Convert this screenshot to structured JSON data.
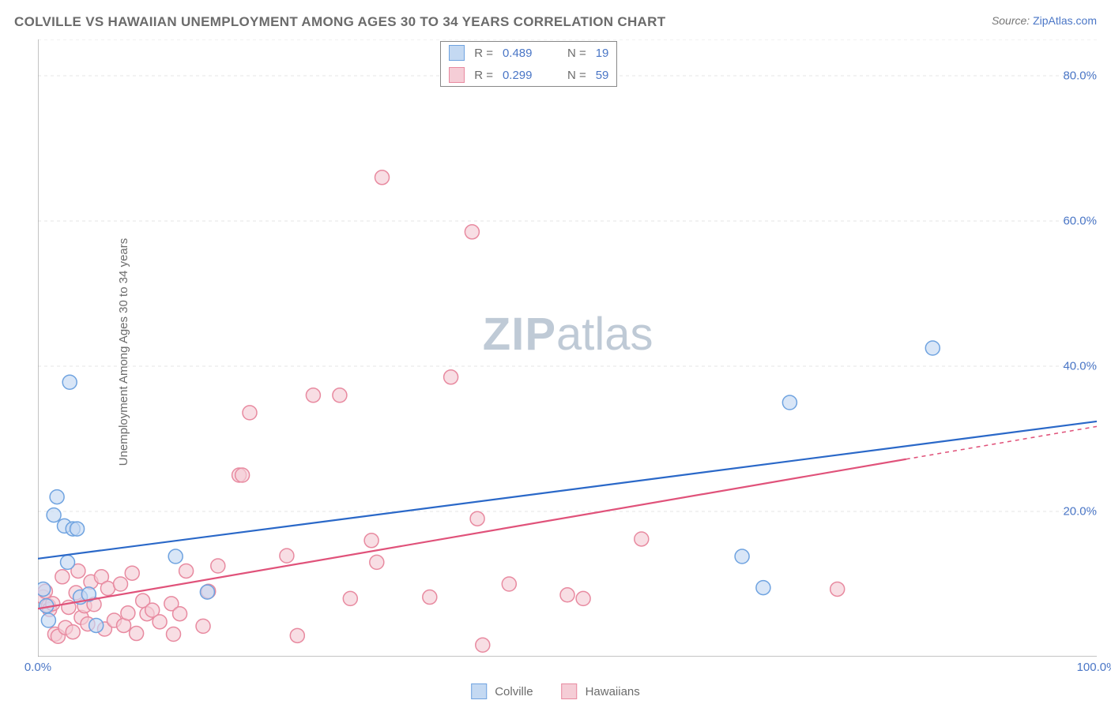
{
  "title": "COLVILLE VS HAWAIIAN UNEMPLOYMENT AMONG AGES 30 TO 34 YEARS CORRELATION CHART",
  "source_label": "Source: ",
  "source_site": "ZipAtlas.com",
  "yaxis_label": "Unemployment Among Ages 30 to 34 years",
  "watermark_zip": "ZIP",
  "watermark_atlas": "atlas",
  "chart": {
    "type": "scatter-with-trendlines",
    "xmin": 0,
    "xmax": 100,
    "ymin": 0,
    "ymax": 85,
    "x_ticks": [
      0,
      10,
      20,
      30,
      40,
      50,
      60,
      70,
      80,
      90,
      100
    ],
    "x_tick_labels": {
      "0": "0.0%",
      "100": "100.0%"
    },
    "y_ticks": [
      20,
      40,
      60,
      80
    ],
    "y_tick_labels": {
      "20": "20.0%",
      "40": "40.0%",
      "60": "60.0%",
      "80": "80.0%"
    },
    "grid_color": "#e6e6e6",
    "axis_color": "#888888",
    "tick_color": "#888888",
    "marker_radius": 9,
    "marker_stroke_width": 1.5,
    "trend_line_width": 2.2,
    "series": [
      {
        "name": "Colville",
        "fill": "#c4d9f2",
        "stroke": "#6fa3e0",
        "line_stroke": "#2a68c8",
        "r_value": "0.489",
        "n_value": "19",
        "points": [
          [
            0.5,
            9.3
          ],
          [
            0.8,
            7.0
          ],
          [
            1.0,
            5.0
          ],
          [
            1.5,
            19.5
          ],
          [
            1.8,
            22.0
          ],
          [
            2.5,
            18.0
          ],
          [
            2.8,
            13.0
          ],
          [
            3.0,
            37.8
          ],
          [
            3.3,
            17.6
          ],
          [
            3.7,
            17.6
          ],
          [
            4.0,
            8.2
          ],
          [
            4.8,
            8.6
          ],
          [
            5.5,
            4.3
          ],
          [
            13.0,
            13.8
          ],
          [
            16.0,
            8.9
          ],
          [
            66.5,
            13.8
          ],
          [
            68.5,
            9.5
          ],
          [
            71.0,
            35.0
          ],
          [
            84.5,
            42.5
          ]
        ],
        "trend": {
          "x1": 0,
          "y1": 13.5,
          "x2": 100,
          "y2": 32.4
        }
      },
      {
        "name": "Hawaiians",
        "fill": "#f5cdd6",
        "stroke": "#e88aa0",
        "line_stroke": "#e0527a",
        "r_value": "0.299",
        "n_value": "59",
        "points": [
          [
            0.5,
            8.2
          ],
          [
            0.7,
            9.0
          ],
          [
            1.0,
            7.0
          ],
          [
            1.1,
            6.5
          ],
          [
            1.4,
            7.3
          ],
          [
            1.6,
            3.1
          ],
          [
            1.9,
            2.8
          ],
          [
            2.3,
            11.0
          ],
          [
            2.6,
            4.0
          ],
          [
            2.9,
            6.8
          ],
          [
            3.3,
            3.4
          ],
          [
            3.6,
            8.8
          ],
          [
            3.8,
            11.8
          ],
          [
            4.1,
            5.4
          ],
          [
            4.4,
            7.0
          ],
          [
            4.7,
            4.5
          ],
          [
            5.0,
            10.3
          ],
          [
            5.3,
            7.2
          ],
          [
            6.0,
            11.0
          ],
          [
            6.3,
            3.8
          ],
          [
            6.6,
            9.4
          ],
          [
            7.2,
            5.0
          ],
          [
            7.8,
            10.0
          ],
          [
            8.1,
            4.3
          ],
          [
            8.5,
            6.0
          ],
          [
            8.9,
            11.5
          ],
          [
            9.3,
            3.2
          ],
          [
            9.9,
            7.7
          ],
          [
            10.3,
            5.9
          ],
          [
            10.8,
            6.4
          ],
          [
            11.5,
            4.8
          ],
          [
            12.6,
            7.3
          ],
          [
            12.8,
            3.1
          ],
          [
            13.4,
            5.9
          ],
          [
            14.0,
            11.8
          ],
          [
            15.6,
            4.2
          ],
          [
            16.1,
            9.0
          ],
          [
            17.0,
            12.5
          ],
          [
            19.0,
            25.0
          ],
          [
            19.3,
            25.0
          ],
          [
            20.0,
            33.6
          ],
          [
            23.5,
            13.9
          ],
          [
            24.5,
            2.9
          ],
          [
            26.0,
            36.0
          ],
          [
            28.5,
            36.0
          ],
          [
            29.5,
            8.0
          ],
          [
            31.5,
            16.0
          ],
          [
            32.0,
            13.0
          ],
          [
            32.5,
            66.0
          ],
          [
            37.0,
            8.2
          ],
          [
            39.0,
            38.5
          ],
          [
            41.0,
            58.5
          ],
          [
            41.5,
            19.0
          ],
          [
            42.0,
            1.6
          ],
          [
            44.5,
            10.0
          ],
          [
            50.0,
            8.5
          ],
          [
            51.5,
            8.0
          ],
          [
            57.0,
            16.2
          ],
          [
            75.5,
            9.3
          ]
        ],
        "trend": {
          "x1": 0,
          "y1": 6.6,
          "x2": 82,
          "y2": 27.2,
          "dash_extend_to": 100,
          "dash_y2": 31.7
        }
      }
    ]
  },
  "legend": {
    "top": {
      "rows": [
        "Colville",
        "Hawaiians"
      ]
    },
    "bottom": [
      "Colville",
      "Hawaiians"
    ]
  },
  "styling": {
    "title_fontsize": 17,
    "title_color": "#6b6b6b",
    "tick_label_color": "#4a76c6",
    "tick_label_fontsize": 15,
    "yaxis_label_fontsize": 15,
    "yaxis_label_color": "#6b6b6b",
    "legend_text_color": "#6b6b6b",
    "legend_number_color": "#4a76c6",
    "watermark_color": "#bfcad6",
    "watermark_fontsize": 58,
    "background_color": "#ffffff"
  }
}
